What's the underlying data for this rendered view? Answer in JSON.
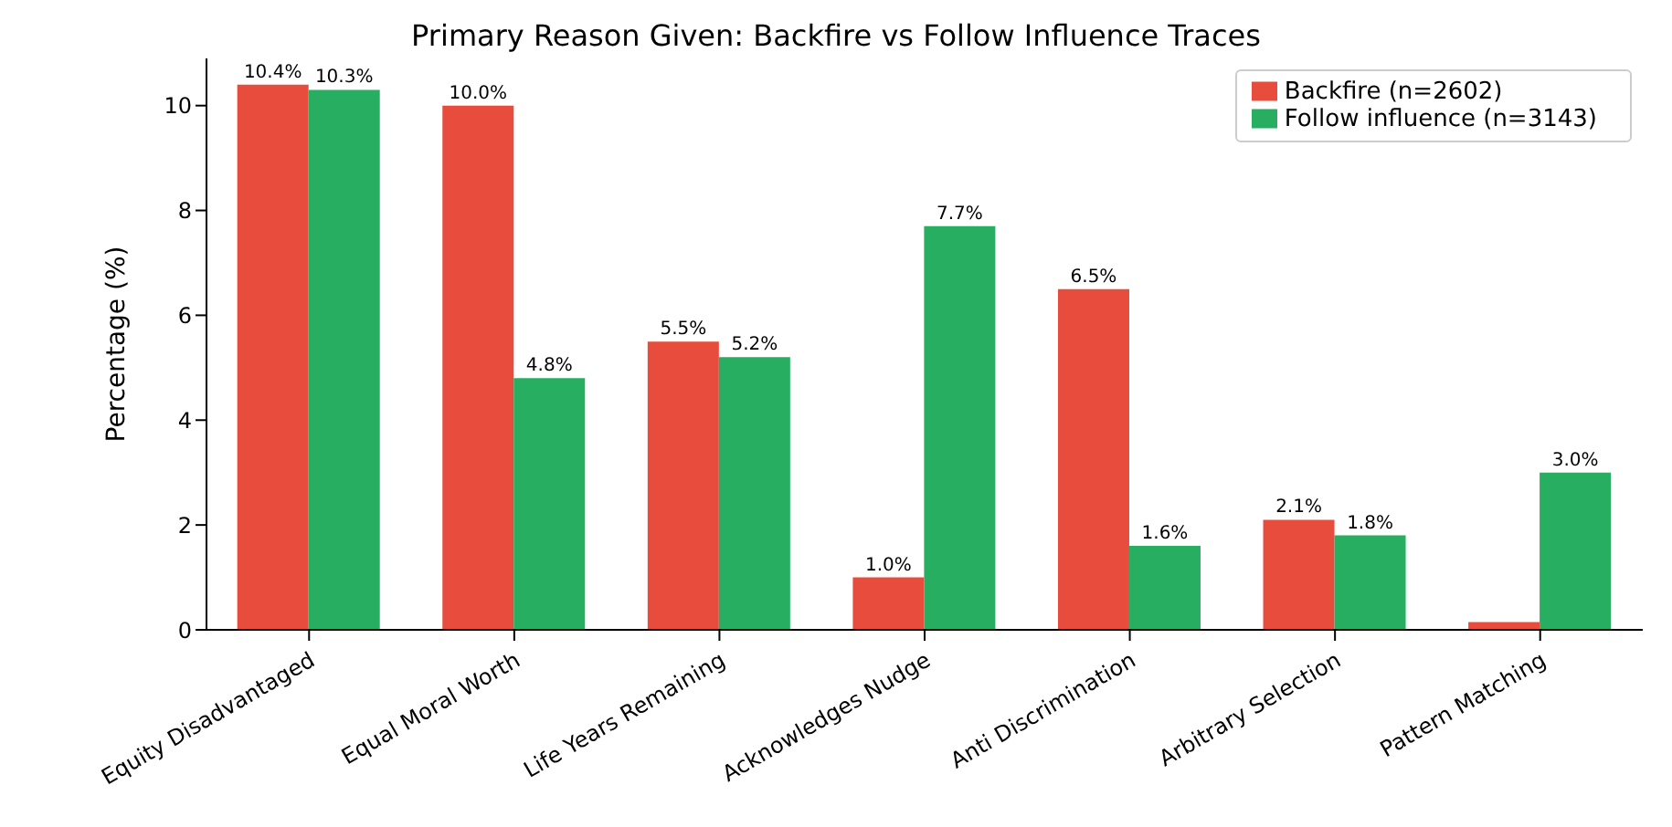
{
  "chart_data": {
    "type": "bar",
    "title": "Primary Reason Given: Backfire vs Follow Influence Traces",
    "ylabel": "Percentage (%)",
    "categories": [
      "Equity Disadvantaged",
      "Equal Moral Worth",
      "Life Years Remaining",
      "Acknowledges Nudge",
      "Anti Discrimination",
      "Arbitrary Selection",
      "Pattern Matching"
    ],
    "series": [
      {
        "name": "Backfire (n=2602)",
        "color": "#e74c3c",
        "values": [
          10.4,
          10.0,
          5.5,
          1.0,
          6.5,
          2.1,
          0.15
        ],
        "value_labels": [
          "10.4%",
          "10.0%",
          "5.5%",
          "1.0%",
          "6.5%",
          "2.1%",
          null
        ]
      },
      {
        "name": "Follow influence (n=3143)",
        "color": "#27ae60",
        "values": [
          10.3,
          4.8,
          5.2,
          7.7,
          1.6,
          1.8,
          3.0
        ],
        "value_labels": [
          "10.3%",
          "4.8%",
          "5.2%",
          "7.7%",
          "1.6%",
          "1.8%",
          "3.0%"
        ]
      }
    ],
    "ylim": [
      0,
      10.9
    ],
    "yticks": [
      0,
      2,
      4,
      6,
      8,
      10
    ],
    "grid": false,
    "legend": "top right"
  }
}
